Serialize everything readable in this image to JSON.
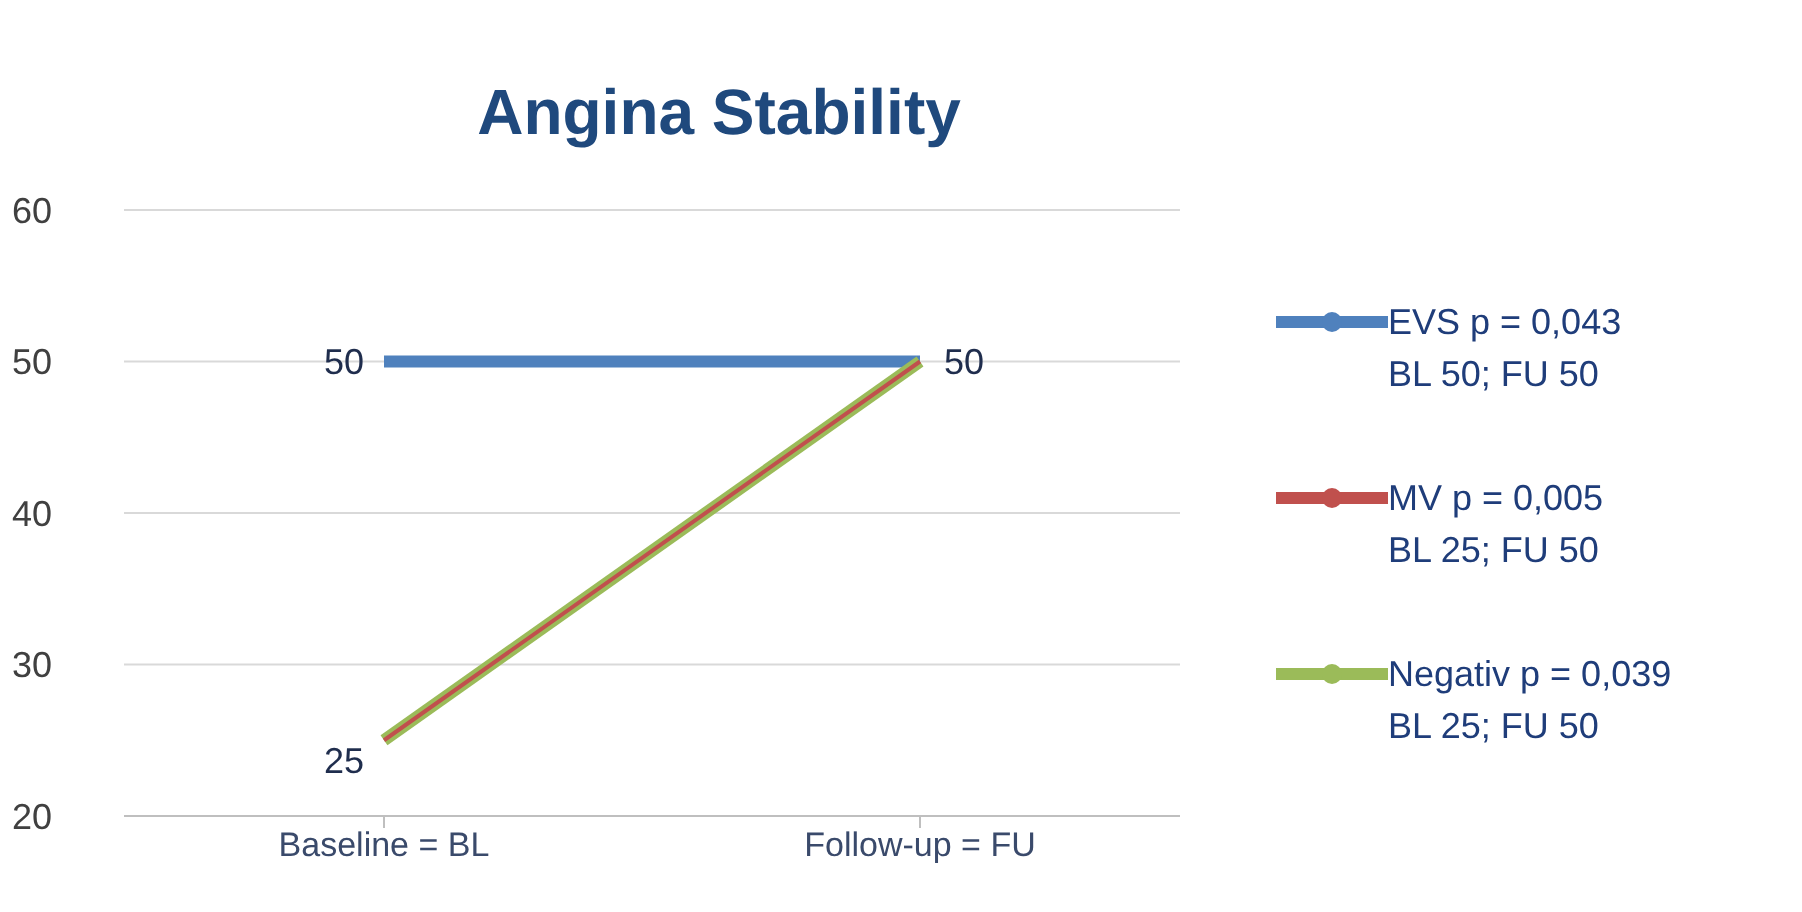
{
  "chart_data": {
    "type": "line",
    "title": "Angina Stability",
    "categories": [
      "Baseline = BL",
      "Follow-up = FU"
    ],
    "series": [
      {
        "name": "EVS p = 0,043\nBL 50; FU 50",
        "color": "#4f81bd",
        "values": [
          50,
          50
        ],
        "value_labels": [
          "50",
          null
        ]
      },
      {
        "name": "MV p = 0,005\nBL 25; FU 50",
        "color": "#c0504d",
        "values": [
          25,
          50
        ],
        "value_labels": [
          null,
          null
        ]
      },
      {
        "name": "Negativ p = 0,039\nBL 25; FU 50",
        "color": "#9bbb59",
        "values": [
          25,
          50
        ],
        "value_labels": [
          "25",
          "50"
        ]
      }
    ],
    "ylim": [
      20,
      60
    ],
    "yticks": [
      20,
      30,
      40,
      50,
      60
    ],
    "grid": "y",
    "legend": "right"
  }
}
